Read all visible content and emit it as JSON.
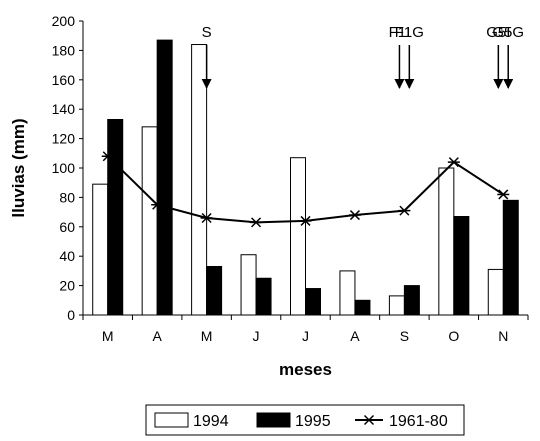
{
  "chart_data": {
    "type": "bar",
    "categories": [
      "M",
      "A",
      "M",
      "J",
      "J",
      "A",
      "S",
      "O",
      "N"
    ],
    "series": [
      {
        "name": "1994",
        "kind": "bar",
        "color": "#ffffff",
        "values": [
          89,
          128,
          184,
          41,
          107,
          30,
          13,
          100,
          31
        ]
      },
      {
        "name": "1995",
        "kind": "bar",
        "color": "#000000",
        "values": [
          133,
          187,
          33,
          25,
          18,
          10,
          20,
          67,
          78
        ]
      },
      {
        "name": "1961-80",
        "kind": "line",
        "marker": "asterisk",
        "color": "#000000",
        "values": [
          108,
          75,
          66,
          63,
          64,
          68,
          71,
          104,
          82
        ]
      }
    ],
    "xlabel": "meses",
    "ylabel": "lluvias (mm)",
    "ylim": [
      0,
      200
    ],
    "yticks": [
      0,
      20,
      40,
      60,
      80,
      100,
      120,
      140,
      160,
      180,
      200
    ],
    "grid": false,
    "legend": "bottom",
    "annotations": [
      {
        "label": "S",
        "x": 2.5
      },
      {
        "label": "F1I",
        "x": 6.4
      },
      {
        "label": "F1G",
        "x": 6.6
      },
      {
        "label": "G5I",
        "x": 8.4
      },
      {
        "label": "G5G",
        "x": 8.6
      }
    ]
  }
}
